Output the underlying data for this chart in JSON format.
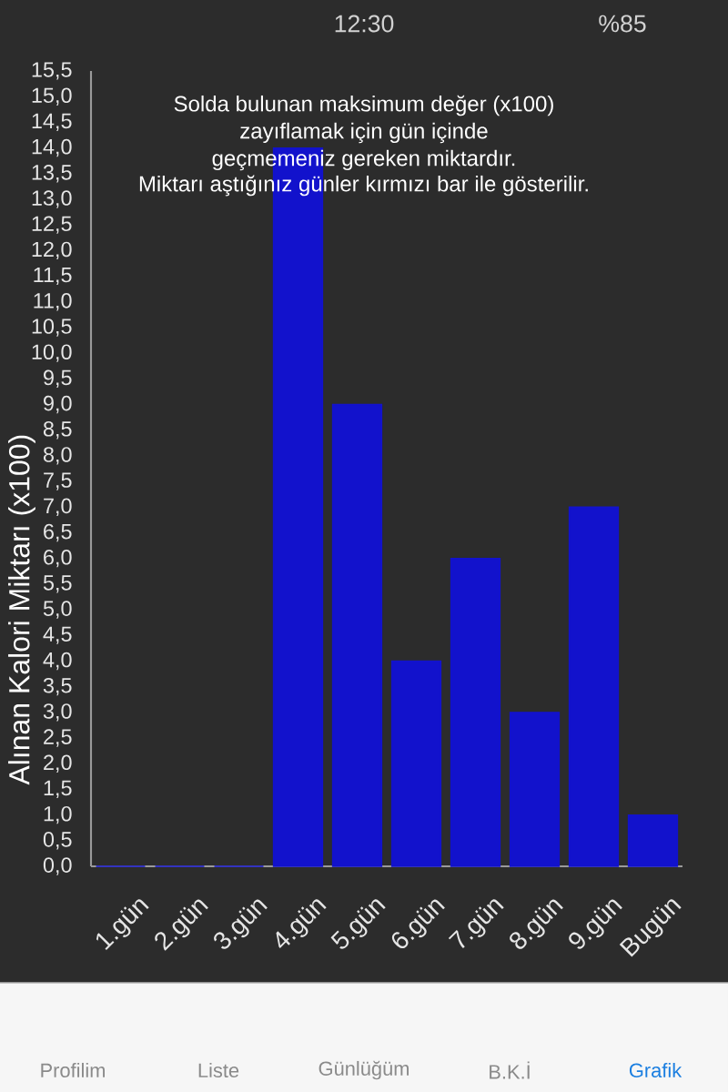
{
  "chart_data": {
    "type": "bar",
    "ylabel": "Alınan Kalori Miktarı (x100)",
    "categories": [
      "1.gün",
      "2.gün",
      "3.gün",
      "4.gün",
      "5.gün",
      "6.gün",
      "7.gün",
      "8.gün",
      "9.gün",
      "Bugün"
    ],
    "values": [
      0,
      0,
      0,
      14,
      9,
      4,
      6,
      3,
      7,
      1
    ],
    "color": "#1212cc",
    "ylim": [
      0,
      15.5
    ],
    "yticks": [
      {
        "value": 0,
        "label": "0,0"
      },
      {
        "value": 0.5,
        "label": "0,5"
      },
      {
        "value": 1,
        "label": "1,0"
      },
      {
        "value": 1.5,
        "label": "1,5"
      },
      {
        "value": 2,
        "label": "2,0"
      },
      {
        "value": 2.5,
        "label": "2,5"
      },
      {
        "value": 3,
        "label": "3,0"
      },
      {
        "value": 3.5,
        "label": "3,5"
      },
      {
        "value": 4,
        "label": "4,0"
      },
      {
        "value": 4.5,
        "label": "4,5"
      },
      {
        "value": 5,
        "label": "5,0"
      },
      {
        "value": 5.5,
        "label": "5,5"
      },
      {
        "value": 6,
        "label": "6,0"
      },
      {
        "value": 6.5,
        "label": "6,5"
      },
      {
        "value": 7,
        "label": "7,0"
      },
      {
        "value": 7.5,
        "label": "7,5"
      },
      {
        "value": 8,
        "label": "8,0"
      },
      {
        "value": 8.5,
        "label": "8,5"
      },
      {
        "value": 9,
        "label": "9,0"
      },
      {
        "value": 9.5,
        "label": "9,5"
      },
      {
        "value": 10,
        "label": "10,0"
      },
      {
        "value": 10.5,
        "label": "10,5"
      },
      {
        "value": 11,
        "label": "11,0"
      },
      {
        "value": 11.5,
        "label": "11,5"
      },
      {
        "value": 12,
        "label": "12,0"
      },
      {
        "value": 12.5,
        "label": "12,5"
      },
      {
        "value": 13,
        "label": "13,0"
      },
      {
        "value": 13.5,
        "label": "13,5"
      },
      {
        "value": 14,
        "label": "14,0"
      },
      {
        "value": 14.5,
        "label": "14,5"
      },
      {
        "value": 15,
        "label": "15,0"
      },
      {
        "value": 15.5,
        "label": "15,5"
      }
    ],
    "annotations": [
      "Solda bulunan maksimum değer (x100)",
      "zayıflamak için gün içinde",
      "geçmemeniz gereken miktardır.",
      "Miktarı aştığınız günler kırmızı bar ile gösterilir.",
      "12:30",
      "%85",
      "Profilim",
      "Liste",
      "Günlüğüm",
      "B.K.İ",
      "Grafik"
    ]
  }
}
